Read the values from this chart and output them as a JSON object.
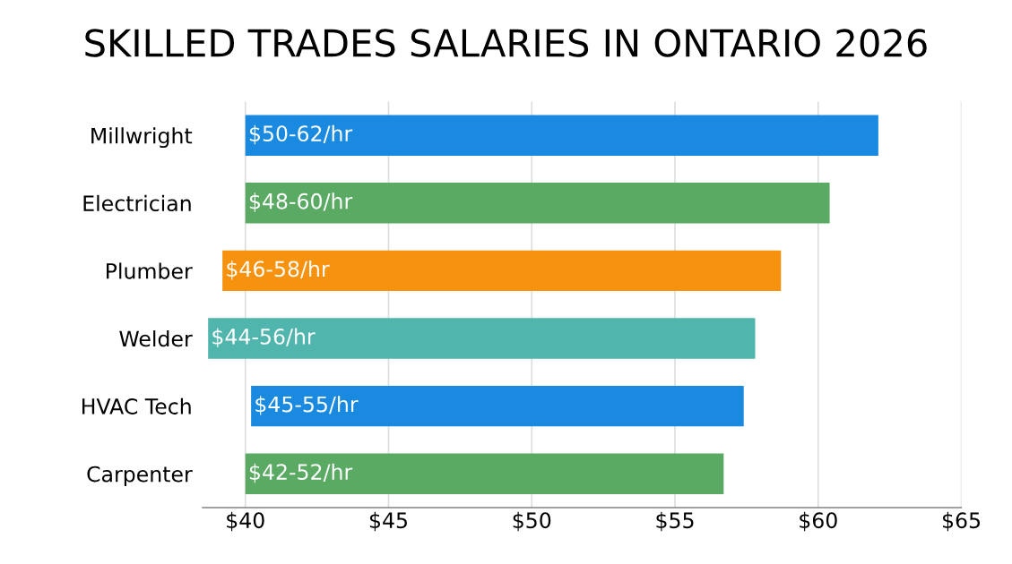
{
  "chart_data": {
    "type": "bar",
    "orientation": "horizontal",
    "title": "SKILLED TRADES SALARIES IN ONTARIO 2026",
    "categories": [
      "Millwright",
      "Electrician",
      "Plumber",
      "Welder",
      "HVAC Tech",
      "Carpenter"
    ],
    "base": [
      40,
      40,
      39.2,
      38.7,
      40.2,
      40
    ],
    "values": [
      22.1,
      20.4,
      19.5,
      19.1,
      17.2,
      16.7
    ],
    "colors": [
      "#1a8ae0",
      "#5aaa64",
      "#f7920e",
      "#4fb5ad",
      "#1a8ae0",
      "#5aaa64"
    ],
    "value_labels": [
      "$50-62/hr",
      "$48-60/hr",
      "$46-58/hr",
      "$44-56/hr",
      "$45-55/hr",
      "$42-52/hr"
    ],
    "xlim": [
      38.5,
      65
    ],
    "xticks": [
      {
        "value": 40,
        "label": "$40"
      },
      {
        "value": 45,
        "label": "$45"
      },
      {
        "value": 50,
        "label": "$50"
      },
      {
        "value": 55,
        "label": "$55"
      },
      {
        "value": 60,
        "label": "$60"
      },
      {
        "value": 65,
        "label": "$65"
      }
    ],
    "grid": "x"
  }
}
